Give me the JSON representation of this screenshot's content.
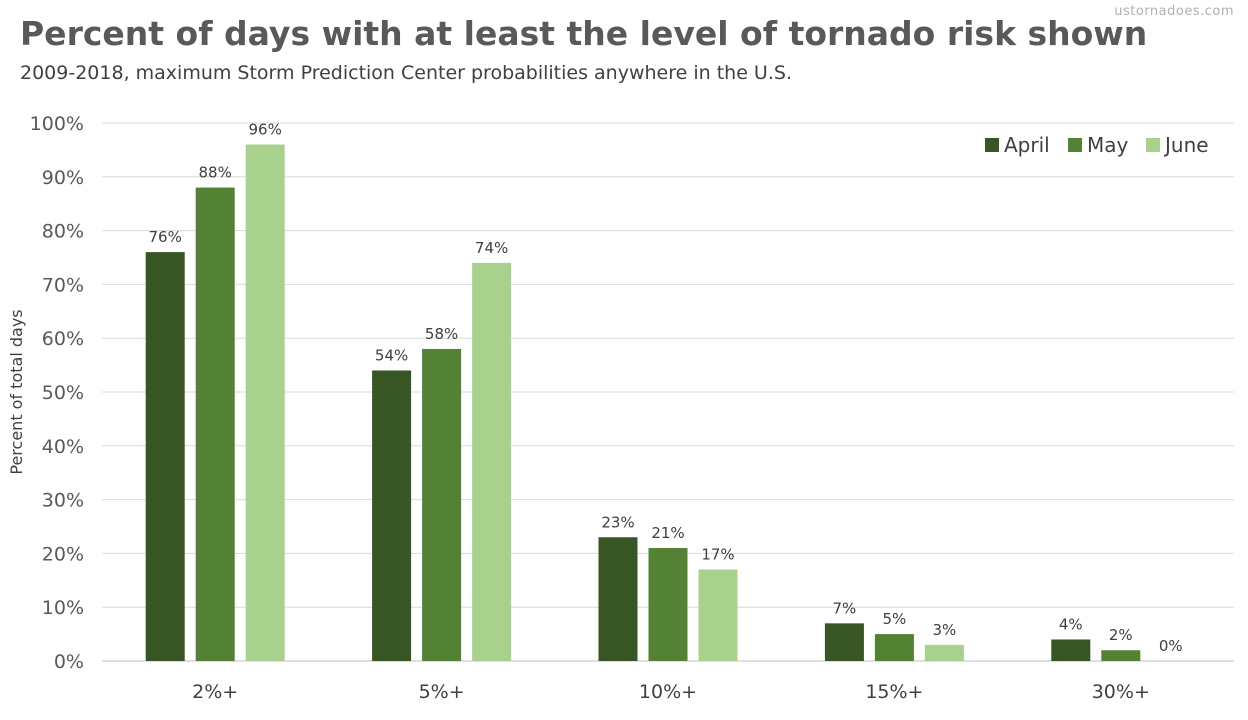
{
  "watermark": "ustornadoes.com",
  "chart_data": {
    "type": "bar",
    "title": "Percent of days with at least the level of tornado risk shown",
    "subtitle": "2009-2018, maximum Storm Prediction Center probabilities anywhere in the U.S.",
    "xlabel": "",
    "ylabel": "Percent of total days",
    "ylim": [
      0,
      100
    ],
    "yticks": [
      0,
      10,
      20,
      30,
      40,
      50,
      60,
      70,
      80,
      90,
      100
    ],
    "ytick_suffix": "%",
    "grid": true,
    "legend_position": "top-right",
    "categories": [
      "2%+",
      "5%+",
      "10%+",
      "15%+",
      "30%+"
    ],
    "series": [
      {
        "name": "April",
        "color": "#375623",
        "values": [
          76,
          54,
          23,
          7,
          4
        ]
      },
      {
        "name": "May",
        "color": "#548235",
        "values": [
          88,
          58,
          21,
          5,
          2
        ]
      },
      {
        "name": "June",
        "color": "#a9d18e",
        "values": [
          96,
          74,
          17,
          3,
          0
        ]
      }
    ]
  }
}
